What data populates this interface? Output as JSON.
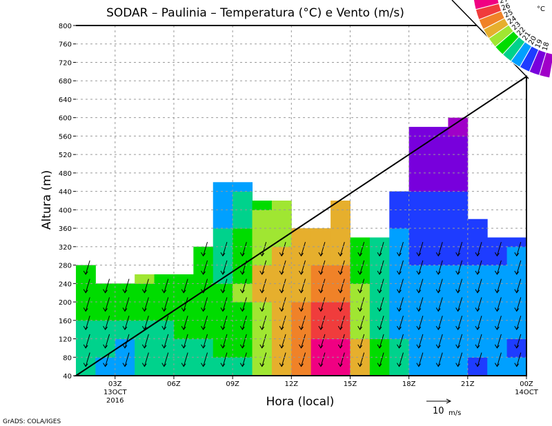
{
  "chart_data": {
    "type": "heatmap",
    "title": "SODAR – Paulinia – Temperatura (°C) e Vento (m/s)",
    "xlabel": "Hora (local)",
    "ylabel": "Altura (m)",
    "xlim": [
      1,
      24
    ],
    "ylim": [
      40,
      800
    ],
    "grid": true,
    "y_ticks": [
      40,
      80,
      120,
      160,
      200,
      240,
      280,
      320,
      360,
      400,
      440,
      480,
      520,
      560,
      600,
      640,
      680,
      720,
      760,
      800
    ],
    "x_ticks": [
      {
        "hour": 3,
        "label": "03Z",
        "sub1": "13OCT",
        "sub2": "2016"
      },
      {
        "hour": 6,
        "label": "06Z"
      },
      {
        "hour": 9,
        "label": "09Z"
      },
      {
        "hour": 12,
        "label": "12Z"
      },
      {
        "hour": 15,
        "label": "15Z"
      },
      {
        "hour": 18,
        "label": "18Z"
      },
      {
        "hour": 21,
        "label": "21Z"
      },
      {
        "hour": 24,
        "label": "00Z",
        "sub1": "14OCT"
      }
    ],
    "level_step_m": 40,
    "columns": [
      {
        "hour": 1,
        "top": 280,
        "temps": [
          21,
          21,
          21,
          22,
          22,
          22
        ]
      },
      {
        "hour": 2,
        "top": 240,
        "temps": [
          20,
          21,
          21,
          22,
          22
        ]
      },
      {
        "hour": 3,
        "top": 240,
        "temps": [
          20,
          20,
          21,
          22,
          22
        ]
      },
      {
        "hour": 4,
        "top": 260,
        "temps": [
          21,
          21,
          21,
          22,
          22,
          23
        ]
      },
      {
        "hour": 5,
        "top": 260,
        "temps": [
          21,
          21,
          21,
          22,
          22,
          22
        ]
      },
      {
        "hour": 6,
        "top": 260,
        "temps": [
          21,
          21,
          22,
          22,
          22,
          22
        ]
      },
      {
        "hour": 7,
        "top": 320,
        "temps": [
          21,
          21,
          22,
          22,
          22,
          22,
          22
        ]
      },
      {
        "hour": 8,
        "top": 460,
        "temps": [
          21,
          22,
          22,
          22,
          22,
          21,
          21,
          21,
          20,
          20,
          20
        ]
      },
      {
        "hour": 9,
        "top": 460,
        "temps": [
          21,
          22,
          22,
          22,
          23,
          22,
          22,
          22,
          21,
          21,
          20
        ]
      },
      {
        "hour": 10,
        "top": 420,
        "temps": [
          23,
          23,
          23,
          23,
          24,
          24,
          23,
          23,
          23,
          22
        ]
      },
      {
        "hour": 11,
        "top": 420,
        "temps": [
          24,
          24,
          24,
          24,
          24,
          24,
          24,
          23,
          23,
          23
        ]
      },
      {
        "hour": 12,
        "top": 360,
        "temps": [
          25,
          25,
          25,
          25,
          24,
          24,
          24,
          24
        ]
      },
      {
        "hour": 13,
        "top": 360,
        "temps": [
          27,
          27,
          26,
          26,
          25,
          25,
          24,
          24
        ]
      },
      {
        "hour": 14,
        "top": 420,
        "temps": [
          27,
          27,
          26,
          26,
          25,
          25,
          24,
          24,
          24,
          24
        ]
      },
      {
        "hour": 15,
        "top": 340,
        "temps": [
          24,
          24,
          23,
          23,
          23,
          22,
          22,
          22
        ]
      },
      {
        "hour": 16,
        "top": 340,
        "temps": [
          22,
          22,
          21,
          21,
          21,
          21,
          21,
          21
        ]
      },
      {
        "hour": 17,
        "top": 440,
        "temps": [
          21,
          21,
          20,
          20,
          20,
          20,
          20,
          20,
          19,
          19
        ]
      },
      {
        "hour": 18,
        "top": 580,
        "temps": [
          20,
          20,
          20,
          20,
          20,
          20,
          19,
          19,
          19,
          19,
          18,
          18,
          18,
          18
        ]
      },
      {
        "hour": 19,
        "top": 580,
        "temps": [
          20,
          20,
          20,
          20,
          20,
          20,
          19,
          19,
          19,
          19,
          18,
          18,
          18,
          18
        ]
      },
      {
        "hour": 20,
        "top": 600,
        "temps": [
          20,
          20,
          20,
          20,
          20,
          20,
          19,
          19,
          19,
          19,
          18,
          18,
          18,
          17
        ]
      },
      {
        "hour": 21,
        "top": 380,
        "temps": [
          19,
          20,
          20,
          20,
          20,
          20,
          19,
          19
        ]
      },
      {
        "hour": 22,
        "top": 340,
        "temps": [
          20,
          20,
          20,
          20,
          20,
          20,
          19,
          19
        ]
      },
      {
        "hour": 23,
        "top": 340,
        "temps": [
          20,
          19,
          20,
          20,
          20,
          20,
          20,
          19
        ]
      }
    ],
    "legend": {
      "unit": "°C",
      "levels": [
        27,
        26,
        25,
        24,
        23,
        22,
        21,
        20,
        19,
        18
      ],
      "colors": [
        "#f00082",
        "#f03c3c",
        "#f08228",
        "#e6af2d",
        "#a0e632",
        "#00dc00",
        "#00d28c",
        "#00a0ff",
        "#1e3cff",
        "#7800dc",
        "#a000c8"
      ],
      "placement": "top-right"
    },
    "wind_reference": {
      "value": "10",
      "unit": "m/s"
    }
  },
  "footer": "GrADS: COLA/IGES"
}
